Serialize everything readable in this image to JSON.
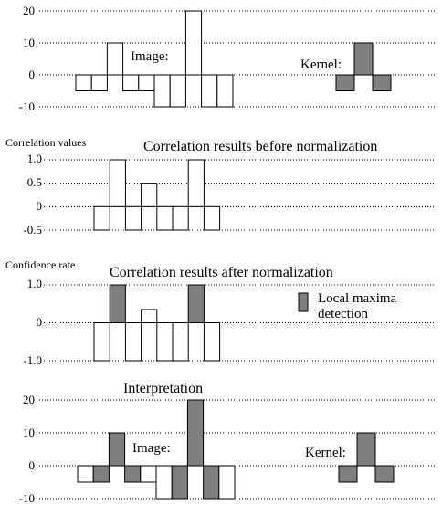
{
  "colors": {
    "positive_fill": "#ffffff",
    "highlight_fill": "#7f7f7f",
    "stroke": "#000000"
  },
  "chart_data": [
    {
      "type": "bar",
      "title": "",
      "ylabel": "",
      "inner_label": "Image:",
      "kernel_label": "Kernel:",
      "ylim": [
        -10,
        20
      ],
      "yticks": [
        "20",
        "10",
        "0",
        "-10"
      ],
      "grid": "dotted horizontal",
      "values": [
        -5,
        -5,
        10,
        -5,
        -5,
        -10,
        -10,
        20,
        -10,
        -10
      ],
      "kernel": [
        -5,
        10,
        -5
      ]
    },
    {
      "type": "bar",
      "title": "Correlation results before normalization",
      "ylabel": "Correlation values",
      "ylim": [
        -0.5,
        1.0
      ],
      "yticks": [
        "1.0",
        "0.5",
        "0",
        "-0.5"
      ],
      "grid": "dotted horizontal",
      "values": [
        -0.5,
        1.0,
        -0.5,
        0.5,
        -0.5,
        -0.5,
        1.0,
        -0.5
      ]
    },
    {
      "type": "bar",
      "title": "Correlation results after normalization",
      "ylabel": "Confidence rate",
      "ylim": [
        -1.0,
        1.0
      ],
      "yticks": [
        "1.0",
        "0",
        "-1.0"
      ],
      "grid": "dotted horizontal",
      "legend": "Local maxima detection",
      "legend_lines": [
        "Local maxima",
        "detection"
      ],
      "values": [
        -1.0,
        1.0,
        -1.0,
        0.35,
        -1.0,
        -1.0,
        1.0,
        -1.0
      ],
      "highlighted_indices": [
        1,
        6
      ]
    },
    {
      "type": "bar",
      "title": "Interpretation",
      "inner_label": "Image:",
      "kernel_label": "Kernel:",
      "ylim": [
        -10,
        20
      ],
      "yticks": [
        "20",
        "10",
        "0",
        "-10"
      ],
      "grid": "dotted horizontal",
      "values": [
        -5,
        -5,
        10,
        -5,
        -5,
        -10,
        -10,
        20,
        -10,
        -10
      ],
      "highlighted_indices": [
        1,
        2,
        3,
        6,
        7,
        8
      ],
      "kernel": [
        -5,
        10,
        -5
      ]
    }
  ]
}
